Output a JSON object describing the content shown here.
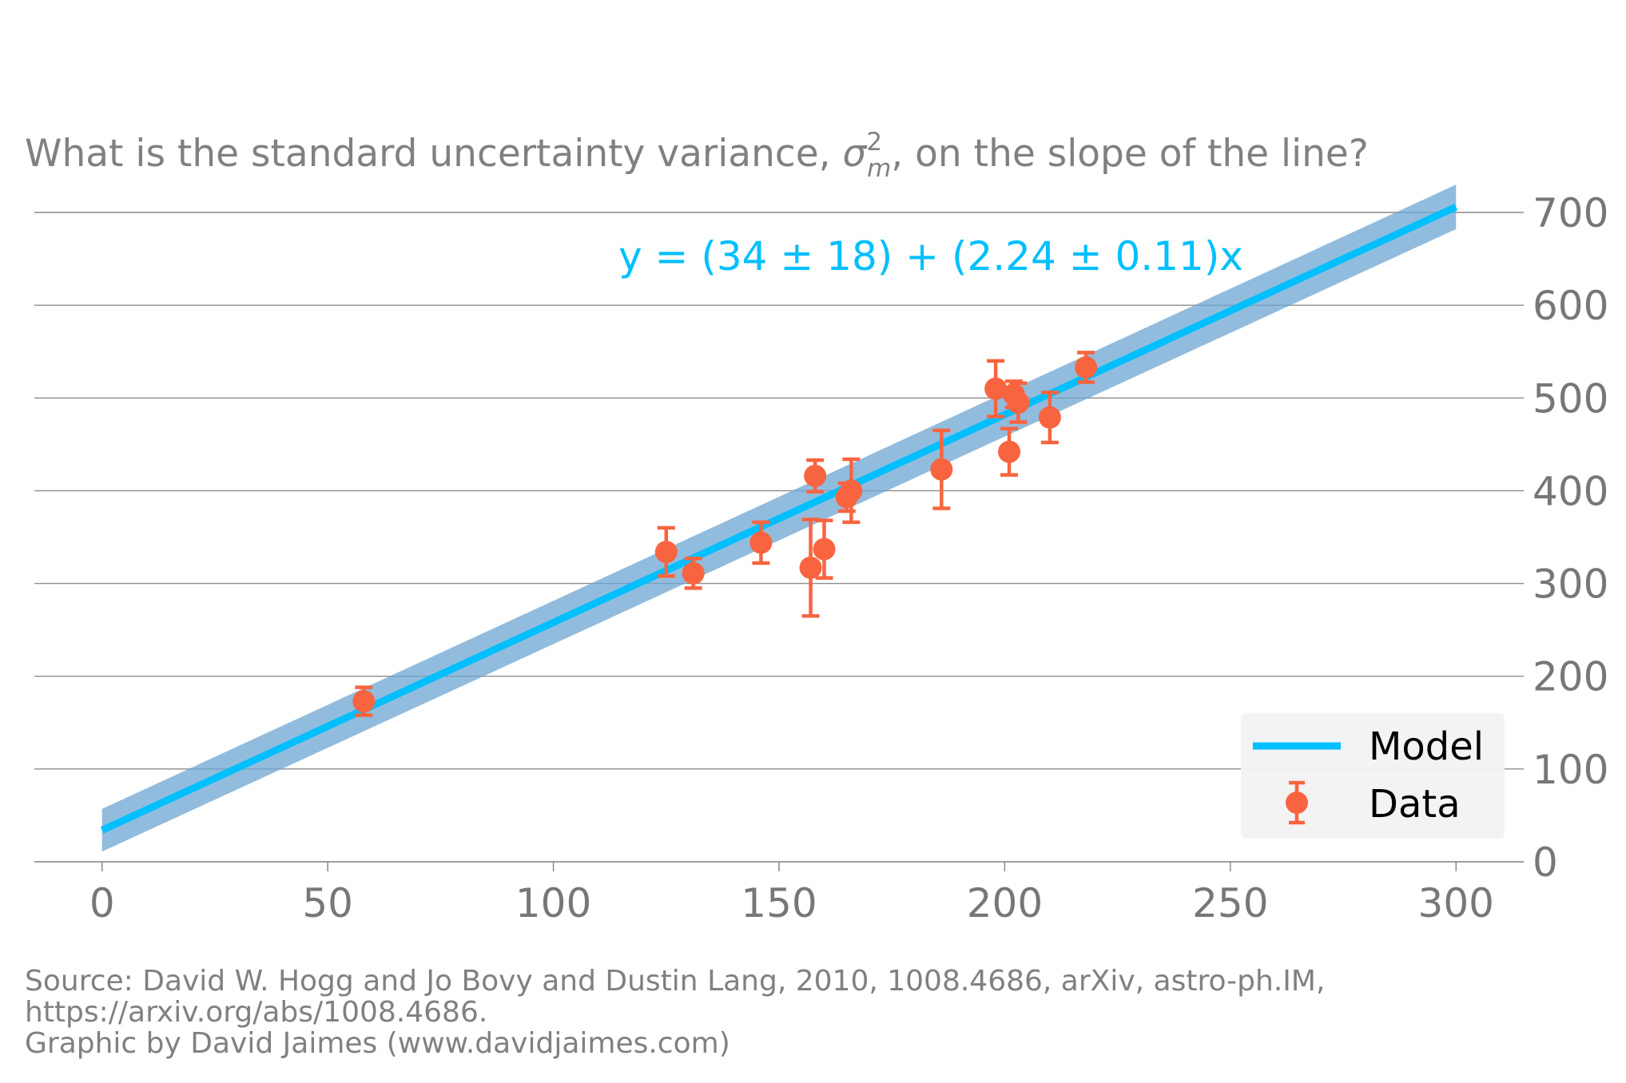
{
  "chart_data": {
    "type": "scatter",
    "title_parts": {
      "before": "What is the standard uncertainty variance, ",
      "symbol": "σ",
      "superscript": "2",
      "subscript": "m",
      "after": ", on the slope of the line?"
    },
    "equation": "y = (34 ± 18) + (2.24 ± 0.11)x",
    "xlim": [
      -15,
      315
    ],
    "ylim": [
      0,
      700
    ],
    "xticks": [
      0,
      50,
      100,
      150,
      200,
      250,
      300
    ],
    "yticks": [
      0,
      100,
      200,
      300,
      400,
      500,
      600,
      700
    ],
    "y_axis_side": "right",
    "grid": "horizontal",
    "legend": {
      "position": "bottom-right",
      "entries": [
        "Model",
        "Data"
      ]
    },
    "model": {
      "name": "Model",
      "intercept": 34,
      "slope": 2.24,
      "x_range": [
        0,
        300
      ],
      "band_halfwidth_at_x0": 23,
      "band_halfwidth_at_x300": 24,
      "line_color": "#00bfff",
      "band_color": "#6ea5d1"
    },
    "data": {
      "name": "Data",
      "color": "#f8643f",
      "points": [
        {
          "x": 58,
          "y": 173,
          "err": 15
        },
        {
          "x": 125,
          "y": 334,
          "err": 26
        },
        {
          "x": 131,
          "y": 311,
          "err": 16
        },
        {
          "x": 146,
          "y": 344,
          "err": 22
        },
        {
          "x": 157,
          "y": 317,
          "err": 52
        },
        {
          "x": 158,
          "y": 416,
          "err": 17
        },
        {
          "x": 160,
          "y": 337,
          "err": 31
        },
        {
          "x": 165,
          "y": 393,
          "err": 15
        },
        {
          "x": 166,
          "y": 400,
          "err": 34
        },
        {
          "x": 186,
          "y": 423,
          "err": 42
        },
        {
          "x": 198,
          "y": 510,
          "err": 30
        },
        {
          "x": 201,
          "y": 442,
          "err": 25
        },
        {
          "x": 202,
          "y": 504,
          "err": 14
        },
        {
          "x": 203,
          "y": 495,
          "err": 21
        },
        {
          "x": 210,
          "y": 479,
          "err": 27
        },
        {
          "x": 218,
          "y": 533,
          "err": 16
        }
      ]
    }
  },
  "source": {
    "line1": "Source: David W. Hogg and Jo Bovy and Dustin Lang, 2010, 1008.4686, arXiv, astro-ph.IM,",
    "line2": "https://arxiv.org/abs/1008.4686.",
    "line3": "Graphic by David Jaimes (www.davidjaimes.com)"
  }
}
